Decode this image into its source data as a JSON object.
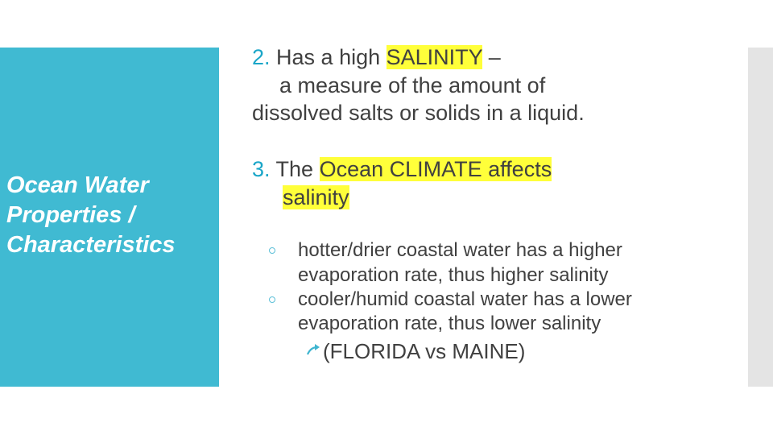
{
  "sidebar": {
    "title_line1": "Ocean Water",
    "title_line2": "Properties /",
    "title_line3": "Characteristics"
  },
  "point2": {
    "number": "2.",
    "before": " Has a high ",
    "highlight": "SALINITY",
    "after": " –",
    "line2": "a measure of the amount of",
    "line3": "dissolved salts or solids in a liquid."
  },
  "point3": {
    "number": "3.",
    "before": " The ",
    "highlight1": "Ocean CLIMATE affects ",
    "highlight2": "salinity"
  },
  "bullets": [
    {
      "line1": "hotter/drier coastal water has a higher",
      "line2": "evaporation rate, thus higher salinity"
    },
    {
      "line1": "cooler/humid coastal water has a lower",
      "line2": "evaporation rate, thus lower salinity"
    }
  ],
  "sub_bullet": {
    "text": "(FLORIDA vs MAINE)",
    "icon": "arrow-right-icon"
  },
  "colors": {
    "panel": "#40bad2",
    "highlight": "#ffff3a",
    "number": "#1aa6c8",
    "text": "#404040"
  }
}
